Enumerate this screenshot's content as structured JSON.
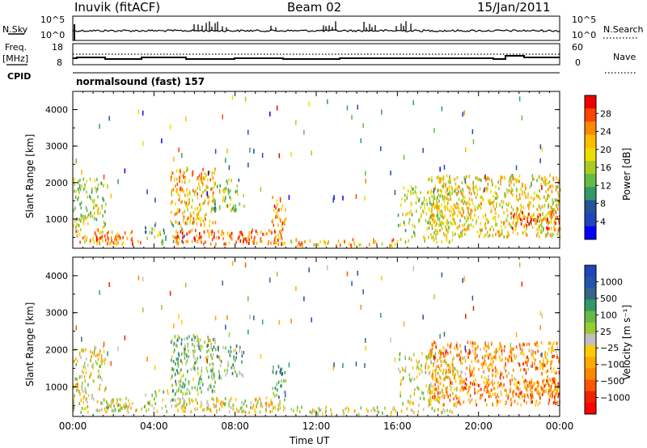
{
  "header": {
    "station": "Inuvik (fitACF)",
    "beam": "Beam 02",
    "date": "15/Jan/2011"
  },
  "left_labels": {
    "nsky": "N.Sky",
    "freq": "Freq.",
    "mhz": "[MHz]",
    "cpid": "CPID"
  },
  "right_labels": {
    "nsearch": "N.Search",
    "nave": "Nave"
  },
  "strip_ticks": {
    "nsky_top": "10^5",
    "nsky_bottom": "10^0",
    "nsearch_top": "10^5",
    "nsearch_bottom": "10^0",
    "freq_top": "18",
    "freq_bottom": "8",
    "nave_top": "60",
    "nave_bottom": "0"
  },
  "mode_label": "normalsound (fast) 157",
  "chart_data": [
    {
      "type": "heatmap",
      "panel": "power",
      "ylabel": "Slant Range [km]",
      "ylim": [
        200,
        4500
      ],
      "yticks": [
        "1000",
        "2000",
        "3000",
        "4000"
      ],
      "xticks": [
        "00:00",
        "04:00",
        "08:00",
        "12:00",
        "16:00",
        "20:00",
        "00:00"
      ],
      "colorbar": {
        "label": "Power [dB]",
        "ticks": [
          "28",
          "24",
          "20",
          "16",
          "12",
          "8",
          "4"
        ],
        "colors": [
          "#ee0000",
          "#ff4400",
          "#ff8800",
          "#ffbb00",
          "#eedd00",
          "#aacc22",
          "#66bb44",
          "#339966",
          "#225599",
          "#2244bb",
          "#0000ff"
        ]
      }
    },
    {
      "type": "heatmap",
      "panel": "velocity",
      "ylabel": "Slant Range [km]",
      "ylim": [
        200,
        4500
      ],
      "yticks": [
        "1000",
        "2000",
        "3000",
        "4000"
      ],
      "xticks": [
        "00:00",
        "04:00",
        "08:00",
        "12:00",
        "16:00",
        "20:00",
        "00:00"
      ],
      "xlabel": "Time UT",
      "colorbar": {
        "label": "Velocity [m s⁻¹]",
        "ticks": [
          "1000",
          "500",
          "100",
          "25",
          "−25",
          "−100",
          "−500",
          "−1000"
        ],
        "colors": [
          "#2244bb",
          "#2255aa",
          "#336688",
          "#339966",
          "#66bb44",
          "#99cc33",
          "#c0c0c0",
          "#ffcc00",
          "#ffaa00",
          "#ff8800",
          "#ff5500",
          "#ee2200",
          "#ff0000"
        ]
      }
    }
  ]
}
